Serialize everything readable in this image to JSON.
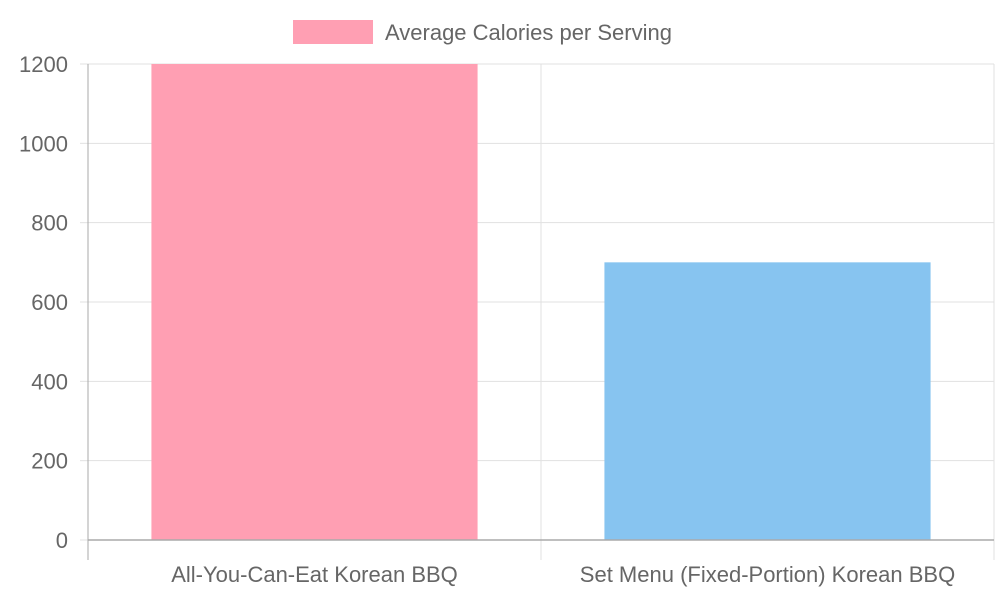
{
  "chart_data": {
    "type": "bar",
    "categories": [
      "All-You-Can-Eat Korean BBQ",
      "Set Menu (Fixed-Portion) Korean BBQ"
    ],
    "series": [
      {
        "name": "Average Calories per Serving",
        "values": [
          1200,
          700
        ]
      }
    ],
    "ylim": [
      0,
      1200
    ],
    "yticks": [
      0,
      200,
      400,
      600,
      800,
      1000,
      1200
    ],
    "grid": true,
    "legend_position": "top",
    "colors": {
      "bars": [
        "#ff9fb3",
        "#87c4f0"
      ],
      "legend_swatch": "#ff9fb3",
      "grid": "#e1e1e1",
      "axis": "#aaaaaa",
      "text": "#666666"
    }
  }
}
